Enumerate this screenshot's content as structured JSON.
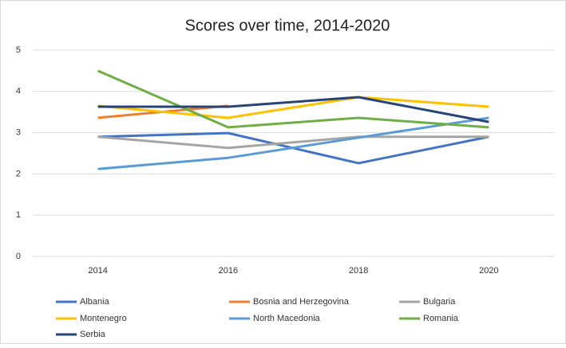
{
  "chart_data": {
    "type": "line",
    "title": "Scores over time, 2014-2020",
    "categories": [
      "2014",
      "2016",
      "2018",
      "2020"
    ],
    "series": [
      {
        "name": "Albania",
        "color": "#4472c4",
        "values": [
          2.9,
          2.99,
          2.26,
          2.9
        ]
      },
      {
        "name": "Bosnia and Herzegovina",
        "color": "#ed7d31",
        "values": [
          3.36,
          3.65,
          null,
          null
        ]
      },
      {
        "name": "Bulgaria",
        "color": "#a5a5a5",
        "values": [
          2.9,
          2.63,
          2.9,
          2.9
        ]
      },
      {
        "name": "Montenegro",
        "color": "#ffc000",
        "values": [
          3.65,
          3.36,
          3.86,
          3.63
        ]
      },
      {
        "name": "North Macedonia",
        "color": "#5b9bd5",
        "values": [
          2.12,
          2.39,
          2.88,
          3.36
        ]
      },
      {
        "name": "Romania",
        "color": "#70ad47",
        "values": [
          4.5,
          3.13,
          3.36,
          3.13
        ]
      },
      {
        "name": "Serbia",
        "color": "#264478",
        "values": [
          3.63,
          3.63,
          3.86,
          3.26
        ]
      }
    ],
    "ylim": [
      0,
      5
    ],
    "yticks": [
      0,
      1,
      2,
      3,
      4,
      5
    ],
    "grid": true,
    "legend": "bottom"
  }
}
